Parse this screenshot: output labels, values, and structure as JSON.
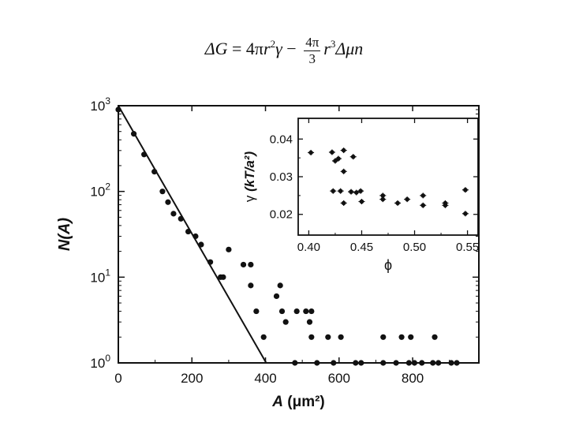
{
  "equation": {
    "lhs": "ΔG",
    "eq": "=",
    "coef1": "4π",
    "r1": "r",
    "exp1": "2",
    "gamma": "γ",
    "minus": "−",
    "frac_num": "4π",
    "frac_den": "3",
    "r2": "r",
    "exp2": "3",
    "tail": "Δμn"
  },
  "chart_data": [
    {
      "type": "scatter",
      "id": "main",
      "xlabel": "A (μm²)",
      "ylabel": "N(A)",
      "yscale": "log",
      "xlim": [
        0,
        980
      ],
      "ylim": [
        1,
        1000
      ],
      "xticks": [
        0,
        200,
        400,
        600,
        800
      ],
      "xtick_labels": [
        "0",
        "200",
        "400",
        "600",
        "800"
      ],
      "yticks": [
        1,
        10,
        100,
        1000
      ],
      "ytick_labels": [
        {
          "base": "10",
          "exp": "0"
        },
        {
          "base": "10",
          "exp": "1"
        },
        {
          "base": "10",
          "exp": "2"
        },
        {
          "base": "10",
          "exp": "3"
        }
      ],
      "grid": false,
      "points": [
        [
          0,
          900
        ],
        [
          42,
          470
        ],
        [
          70,
          270
        ],
        [
          98,
          170
        ],
        [
          120,
          100
        ],
        [
          135,
          75
        ],
        [
          150,
          55
        ],
        [
          170,
          48
        ],
        [
          190,
          34
        ],
        [
          210,
          30
        ],
        [
          225,
          24
        ],
        [
          250,
          15
        ],
        [
          278,
          10
        ],
        [
          285,
          10
        ],
        [
          300,
          21
        ],
        [
          340,
          14
        ],
        [
          360,
          14
        ],
        [
          360,
          8
        ],
        [
          375,
          4
        ],
        [
          395,
          2
        ],
        [
          430,
          6
        ],
        [
          440,
          8
        ],
        [
          445,
          4
        ],
        [
          455,
          3
        ],
        [
          480,
          1
        ],
        [
          485,
          4
        ],
        [
          510,
          4
        ],
        [
          520,
          3
        ],
        [
          525,
          2
        ],
        [
          525,
          4
        ],
        [
          540,
          1
        ],
        [
          570,
          2
        ],
        [
          585,
          1
        ],
        [
          605,
          2
        ],
        [
          645,
          1
        ],
        [
          660,
          1
        ],
        [
          720,
          2
        ],
        [
          720,
          1
        ],
        [
          755,
          1
        ],
        [
          770,
          2
        ],
        [
          790,
          1
        ],
        [
          795,
          2
        ],
        [
          805,
          1
        ],
        [
          825,
          1
        ],
        [
          855,
          1
        ],
        [
          860,
          2
        ],
        [
          870,
          1
        ],
        [
          905,
          1
        ],
        [
          920,
          1
        ]
      ],
      "fit_line": [
        [
          0,
          1000
        ],
        [
          402,
          1
        ]
      ]
    },
    {
      "type": "scatter",
      "id": "inset",
      "xlabel": "ϕ",
      "ylabel": "γ (kT/a²)",
      "xlim": [
        0.39,
        0.56
      ],
      "ylim": [
        0.0145,
        0.0455
      ],
      "xticks": [
        0.4,
        0.45,
        0.5,
        0.55
      ],
      "xtick_labels": [
        "0.40",
        "0.45",
        "0.50",
        "0.55"
      ],
      "yticks": [
        0.02,
        0.03,
        0.04
      ],
      "ytick_labels": [
        "0.02",
        "0.03",
        "0.04"
      ],
      "grid": false,
      "points": [
        [
          0.402,
          0.0364
        ],
        [
          0.422,
          0.0365
        ],
        [
          0.425,
          0.0342
        ],
        [
          0.428,
          0.0348
        ],
        [
          0.433,
          0.037
        ],
        [
          0.442,
          0.0353
        ],
        [
          0.433,
          0.0314
        ],
        [
          0.423,
          0.0262
        ],
        [
          0.43,
          0.0262
        ],
        [
          0.433,
          0.023
        ],
        [
          0.44,
          0.026
        ],
        [
          0.445,
          0.0258
        ],
        [
          0.449,
          0.0262
        ],
        [
          0.45,
          0.0234
        ],
        [
          0.47,
          0.025
        ],
        [
          0.47,
          0.024
        ],
        [
          0.484,
          0.023
        ],
        [
          0.493,
          0.024
        ],
        [
          0.508,
          0.025
        ],
        [
          0.508,
          0.0224
        ],
        [
          0.529,
          0.023
        ],
        [
          0.529,
          0.0224
        ],
        [
          0.548,
          0.0265
        ],
        [
          0.548,
          0.0202
        ]
      ]
    }
  ]
}
